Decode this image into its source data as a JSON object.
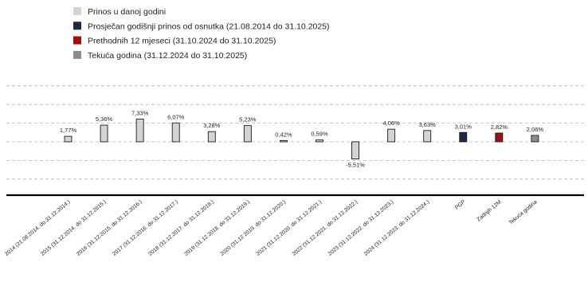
{
  "chart_data": {
    "type": "bar",
    "legend": [
      {
        "label": "Prinos u danoj godini",
        "color": "#d4d4d4"
      },
      {
        "label": "Prosječan godišnji prinos od osnutka (21.08.2014 do 31.10.2025)",
        "color": "#1b2a44"
      },
      {
        "label": "Prethodnih 12 mjeseci (31.10.2024 do 31.10.2025)",
        "color": "#a01010"
      },
      {
        "label": "Tekuća godina (31.12.2024 do 31.10.2025)",
        "color": "#8c8c8c"
      }
    ],
    "legend_position": "top-left",
    "grid": true,
    "ylim": [
      -12,
      14
    ],
    "categories": [
      "2014 (21.08.2014. do 31.12.2014.)",
      "2015 (31.12.2014. do 31.12.2015.)",
      "2016 (31.12.2015. do 31.12.2016.)",
      "2017 (31.12.2016. do 31.12.2017.)",
      "2018 (31.12.2017. do 31.12.2018.)",
      "2019 (31.12.2018. do 31.12.2019.)",
      "2020 (31.12.2019. do 31.12.2020.)",
      "2021 (31.12.2020. do 31.12.2021.)",
      "2022 (31.12.2021. do 31.12.2022.)",
      "2023 (31.12.2022. do 31.12.2023.)",
      "2024 (31.12.2023. do 31.12.2024.)",
      "PGP",
      "Zadnjih 12M",
      "Tekuća godina"
    ],
    "values": [
      1.77,
      5.36,
      7.33,
      6.07,
      3.28,
      5.23,
      0.42,
      0.59,
      -5.51,
      4.06,
      3.63,
      3.01,
      2.82,
      2.06
    ],
    "value_labels": [
      "1,77%",
      "5,36%",
      "7,33%",
      "6,07%",
      "3,28%",
      "5,23%",
      "0,42%",
      "0,59%",
      "-5,51%",
      "4,06%",
      "3,63%",
      "3,01%",
      "2,82%",
      "2,06%"
    ],
    "series_index": [
      0,
      0,
      0,
      0,
      0,
      0,
      0,
      0,
      0,
      0,
      0,
      1,
      2,
      3
    ]
  }
}
